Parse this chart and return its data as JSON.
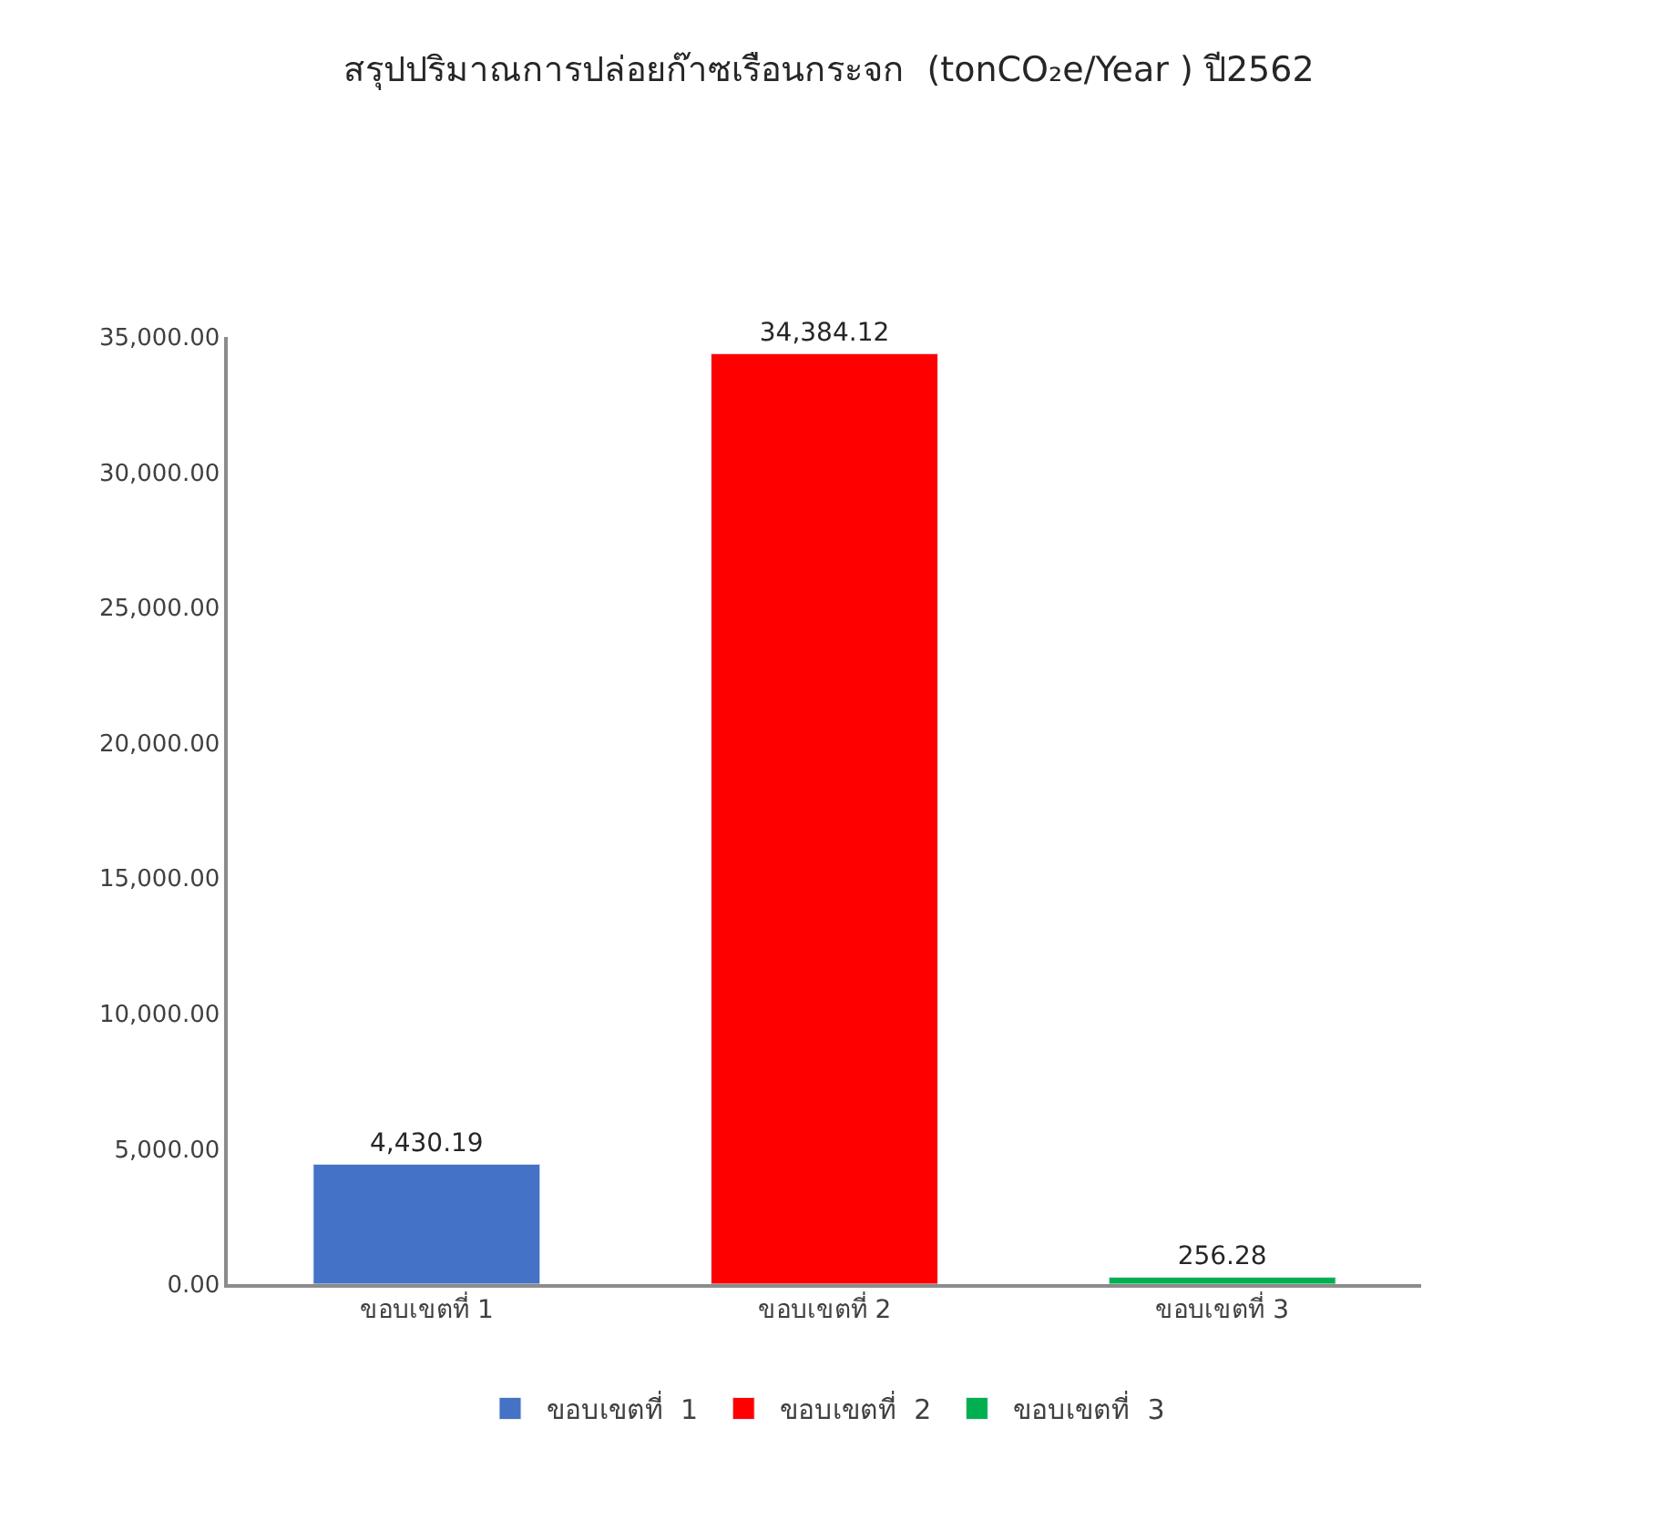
{
  "chart_data": {
    "type": "bar",
    "title": "สรุปปริมาณการปล่อยก๊าซเรือนกระจก  (tonCO₂e/Year ) ปี2562",
    "categories": [
      "ขอบเขตที่ 1",
      "ขอบเขตที่ 2",
      "ขอบเขตที่ 3"
    ],
    "series": [
      {
        "name": "ขอบเขตที่  1",
        "color": "#4472c4",
        "values": [
          4430.19,
          null,
          null
        ],
        "value_labels": [
          "4,430.19",
          null,
          null
        ]
      },
      {
        "name": "ขอบเขตที่  2",
        "color": "#ff0000",
        "values": [
          null,
          34384.12,
          null
        ],
        "value_labels": [
          null,
          "34,384.12",
          null
        ]
      },
      {
        "name": "ขอบเขตที่  3",
        "color": "#00b050",
        "values": [
          null,
          null,
          256.28
        ],
        "value_labels": [
          null,
          null,
          "256.28"
        ]
      }
    ],
    "ylim": [
      0,
      35000
    ],
    "yticks": [
      {
        "value": 0,
        "label": "0.00"
      },
      {
        "value": 5000,
        "label": "5,000.00"
      },
      {
        "value": 10000,
        "label": "10,000.00"
      },
      {
        "value": 15000,
        "label": "15,000.00"
      },
      {
        "value": 20000,
        "label": "20,000.00"
      },
      {
        "value": 25000,
        "label": "25,000.00"
      },
      {
        "value": 30000,
        "label": "30,000.00"
      },
      {
        "value": 35000,
        "label": "35,000.00"
      }
    ],
    "grid": false,
    "legend": "bottom"
  }
}
